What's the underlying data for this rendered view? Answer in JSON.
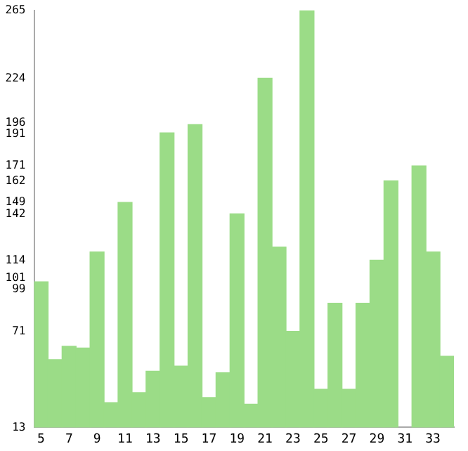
{
  "chart_data": {
    "type": "bar",
    "categories": [
      "5",
      null,
      "7",
      null,
      "9",
      null,
      "11",
      null,
      "13",
      null,
      "15",
      null,
      "17",
      null,
      "19",
      null,
      "21",
      null,
      "23",
      null,
      "25",
      null,
      "27",
      null,
      "29",
      null,
      "31",
      null,
      "33",
      null
    ],
    "values": [
      101,
      54,
      62,
      61,
      119,
      28,
      149,
      34,
      47,
      191,
      50,
      196,
      31,
      46,
      142,
      27,
      224,
      122,
      71,
      265,
      36,
      88,
      36,
      88,
      114,
      162,
      null,
      171,
      119,
      56
    ],
    "color": "#9bdc87",
    "ylim": [
      13,
      265
    ],
    "yticks": [
      13,
      71,
      99,
      101,
      114,
      142,
      149,
      162,
      171,
      191,
      196,
      224,
      265
    ],
    "grid": false,
    "legend": false
  }
}
